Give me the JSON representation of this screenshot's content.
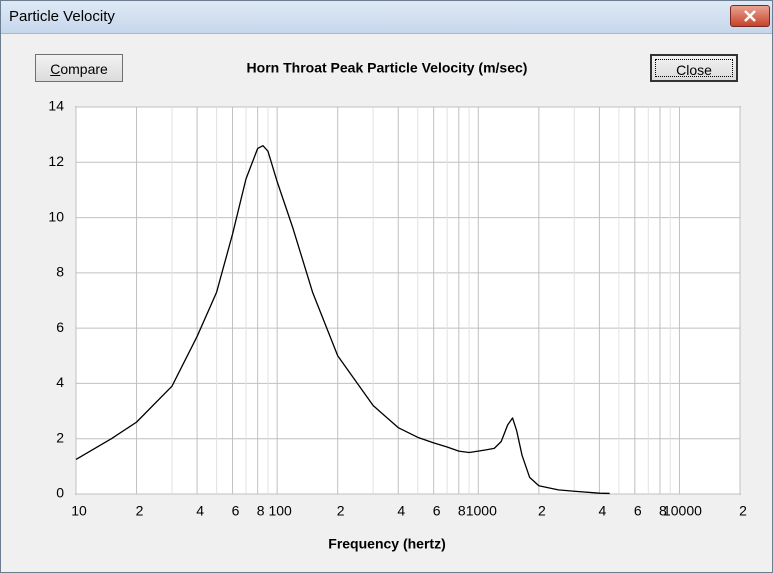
{
  "window": {
    "title": "Particle Velocity"
  },
  "buttons": {
    "compare": "Compare",
    "close": "Close"
  },
  "chart_data": {
    "type": "line",
    "title": "Horn Throat Peak Particle Velocity (m/sec)",
    "x_label": "Frequency (hertz)",
    "x": [
      10,
      15,
      20,
      30,
      40,
      50,
      60,
      70,
      80,
      85,
      90,
      100,
      120,
      150,
      200,
      300,
      400,
      500,
      600,
      700,
      800,
      900,
      1000,
      1100,
      1200,
      1300,
      1400,
      1480,
      1550,
      1650,
      1800,
      2000,
      2500,
      3000,
      4000,
      4500
    ],
    "values": [
      1.25,
      2.0,
      2.6,
      3.9,
      5.7,
      7.3,
      9.4,
      11.4,
      12.5,
      12.6,
      12.4,
      11.3,
      9.6,
      7.3,
      5.0,
      3.2,
      2.4,
      2.05,
      1.85,
      1.7,
      1.55,
      1.5,
      1.55,
      1.6,
      1.65,
      1.9,
      2.5,
      2.75,
      2.3,
      1.4,
      0.6,
      0.3,
      0.15,
      0.1,
      0.03,
      0.02
    ],
    "color": "#000000",
    "xscale": "log",
    "grid": true,
    "xlim": [
      10,
      20000
    ],
    "ylim": [
      0,
      14
    ],
    "yticks": [
      0,
      2,
      4,
      6,
      8,
      10,
      12,
      14
    ],
    "xticks": [
      10,
      {
        "value": 20,
        "label": "2"
      },
      {
        "value": 30,
        "label": null
      },
      {
        "value": 40,
        "label": "4"
      },
      {
        "value": 50,
        "label": null
      },
      {
        "value": 60,
        "label": "6"
      },
      {
        "value": 70,
        "label": null
      },
      {
        "value": 80,
        "label": "8"
      },
      {
        "value": 90,
        "label": null
      },
      100,
      {
        "value": 200,
        "label": "2"
      },
      {
        "value": 300,
        "label": null
      },
      {
        "value": 400,
        "label": "4"
      },
      {
        "value": 500,
        "label": null
      },
      {
        "value": 600,
        "label": "6"
      },
      {
        "value": 700,
        "label": null
      },
      {
        "value": 800,
        "label": "8"
      },
      {
        "value": 900,
        "label": null
      },
      1000,
      {
        "value": 2000,
        "label": "2"
      },
      {
        "value": 3000,
        "label": null
      },
      {
        "value": 4000,
        "label": "4"
      },
      {
        "value": 5000,
        "label": null
      },
      {
        "value": 6000,
        "label": "6"
      },
      {
        "value": 7000,
        "label": null
      },
      {
        "value": 8000,
        "label": "8"
      },
      {
        "value": 9000,
        "label": null
      },
      10000,
      {
        "value": 20000,
        "label": "2"
      }
    ]
  }
}
